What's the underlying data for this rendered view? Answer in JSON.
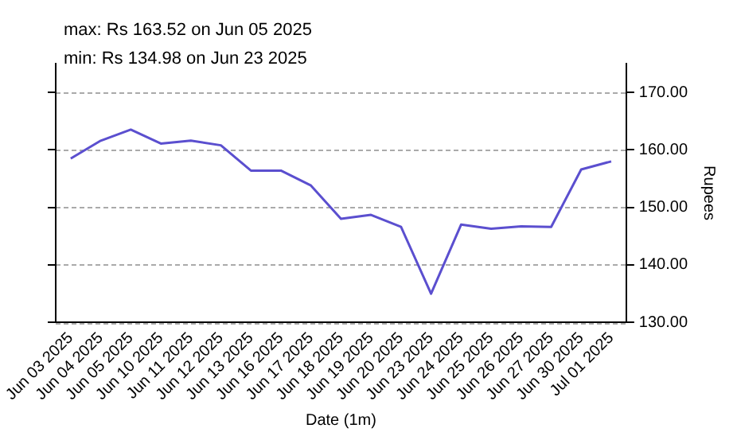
{
  "chart_data": {
    "type": "line",
    "title": "max: Rs 163.52 on Jun 05 2025",
    "subtitle": "min: Rs 134.98 on Jun 23 2025",
    "xlabel": "Date (1m)",
    "ylabel": "Rupees",
    "categories": [
      "Jun 03 2025",
      "Jun 04 2025",
      "Jun 05 2025",
      "Jun 10 2025",
      "Jun 11 2025",
      "Jun 12 2025",
      "Jun 13 2025",
      "Jun 16 2025",
      "Jun 17 2025",
      "Jun 18 2025",
      "Jun 19 2025",
      "Jun 20 2025",
      "Jun 23 2025",
      "Jun 24 2025",
      "Jun 25 2025",
      "Jun 26 2025",
      "Jun 27 2025",
      "Jun 30 2025",
      "Jul 01 2025"
    ],
    "series": [
      {
        "color": "#5b4fcf",
        "values": [
          158.5,
          161.6,
          163.52,
          161.1,
          161.6,
          160.8,
          156.4,
          156.4,
          153.8,
          148.0,
          148.7,
          146.6,
          134.98,
          147.0,
          146.3,
          146.7,
          146.6,
          156.6,
          158.0
        ]
      }
    ],
    "ylim": [
      130,
      175
    ],
    "yticks": [
      {
        "value": 130,
        "label": "130.00"
      },
      {
        "value": 140,
        "label": "140.00"
      },
      {
        "value": 150,
        "label": "150.00"
      },
      {
        "value": 160,
        "label": "160.00"
      },
      {
        "value": 170,
        "label": "170.00"
      }
    ],
    "grid": "y",
    "legend": false,
    "marker": "none",
    "line_style": "solid"
  }
}
